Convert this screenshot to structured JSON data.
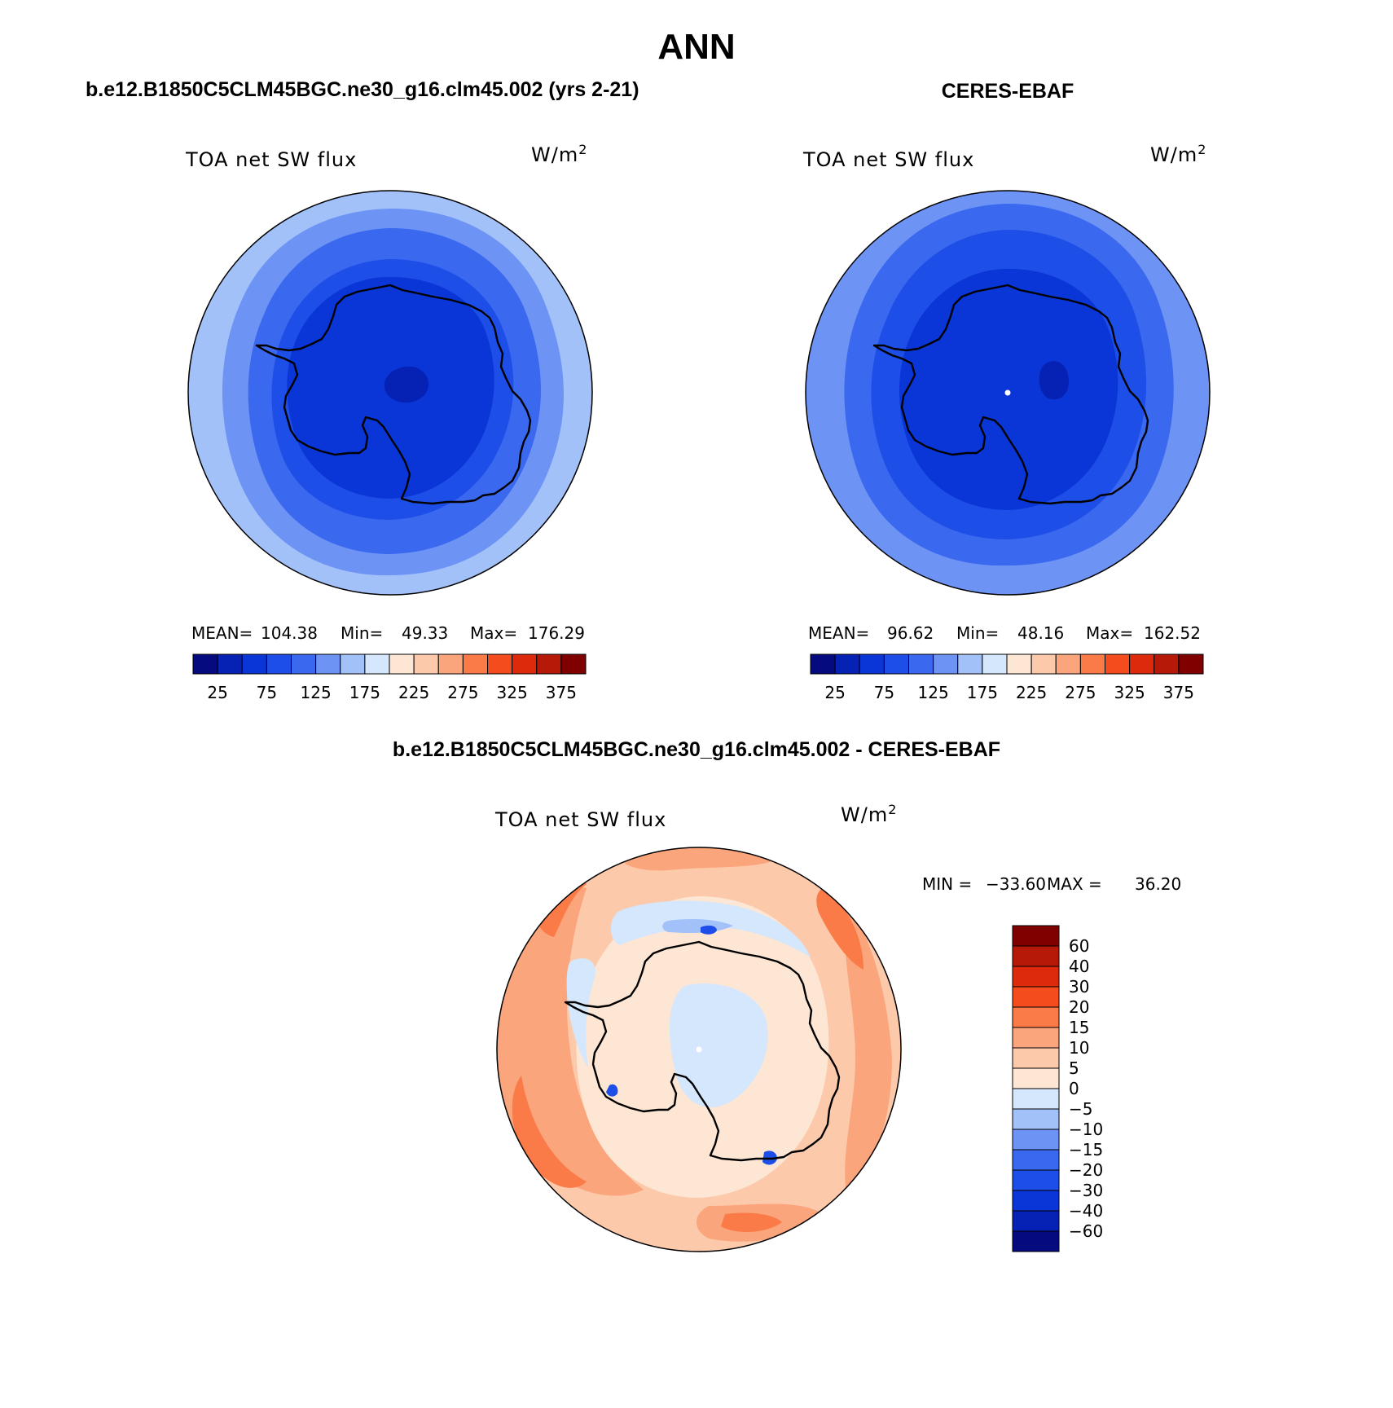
{
  "title": "ANN",
  "colors": {
    "abs_palette": [
      "#050a7f",
      "#0522b5",
      "#0a36d8",
      "#1e4ee8",
      "#3a68ef",
      "#6d93f4",
      "#a3c1f9",
      "#d4e7fc",
      "#fde6d4",
      "#fcc9ab",
      "#fba57c",
      "#fa7a48",
      "#f54c1e",
      "#dd2a0c",
      "#b61908",
      "#800000"
    ],
    "diff_palette": [
      "#050a7f",
      "#0522b5",
      "#0a36d8",
      "#1e4ee8",
      "#3a68ef",
      "#6d93f4",
      "#a3c1f9",
      "#d4e7fc",
      "#fde6d4",
      "#fcc9ab",
      "#fba57c",
      "#fa7a48",
      "#f54c1e",
      "#dd2a0c",
      "#b61908",
      "#800000"
    ]
  },
  "chart_data": [
    {
      "type": "heatmap",
      "projection": "south-polar-stereographic",
      "panel_title": "b.e12.B1850C5CLM45BGC.ne30_g16.clm45.002 (yrs 2-21)",
      "variable": "TOA net SW flux",
      "units_base": "W/m",
      "units_exp": "2",
      "stats": {
        "mean_label": "MEAN=",
        "mean": "104.38",
        "min_label": "Min=",
        "min": "49.33",
        "max_label": "Max=",
        "max": "176.29"
      },
      "levels": [
        25,
        50,
        75,
        100,
        125,
        150,
        175,
        200,
        225,
        250,
        275,
        300,
        325,
        350,
        375
      ],
      "tick_labels": [
        "25",
        "75",
        "125",
        "175",
        "225",
        "275",
        "325",
        "375"
      ],
      "field_levels_outer_to_inner": [
        175,
        150,
        125,
        100,
        75,
        50
      ]
    },
    {
      "type": "heatmap",
      "projection": "south-polar-stereographic",
      "panel_title": "CERES-EBAF",
      "variable": "TOA net SW flux",
      "units_base": "W/m",
      "units_exp": "2",
      "stats": {
        "mean_label": "MEAN=",
        "mean": "96.62",
        "min_label": "Min=",
        "min": "48.16",
        "max_label": "Max=",
        "max": "162.52"
      },
      "levels": [
        25,
        50,
        75,
        100,
        125,
        150,
        175,
        200,
        225,
        250,
        275,
        300,
        325,
        350,
        375
      ],
      "tick_labels": [
        "25",
        "75",
        "125",
        "175",
        "225",
        "275",
        "325",
        "375"
      ],
      "field_levels_outer_to_inner": [
        150,
        125,
        100,
        75,
        50
      ]
    },
    {
      "type": "heatmap",
      "projection": "south-polar-stereographic",
      "panel_title": "b.e12.B1850C5CLM45BGC.ne30_g16.clm45.002 - CERES-EBAF",
      "variable": "TOA net SW flux",
      "units_base": "W/m",
      "units_exp": "2",
      "stats": {
        "min_label": "MIN =",
        "min": "−33.60",
        "max_label": "MAX =",
        "max": "36.20"
      },
      "levels": [
        -60,
        -40,
        -30,
        -20,
        -15,
        -10,
        -5,
        0,
        5,
        10,
        15,
        20,
        30,
        40,
        60
      ],
      "tick_labels": [
        "−60",
        "−40",
        "−30",
        "−20",
        "−15",
        "−10",
        "−5",
        "0",
        "5",
        "10",
        "15",
        "20",
        "30",
        "40",
        "60"
      ]
    }
  ]
}
